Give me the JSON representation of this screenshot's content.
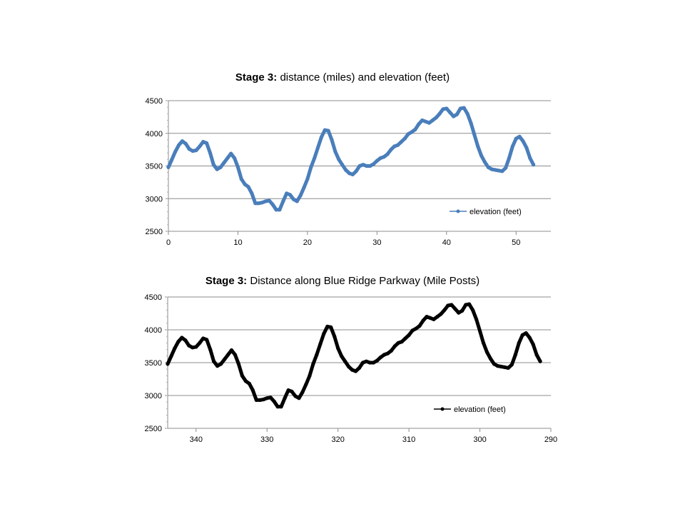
{
  "chart_data": [
    {
      "type": "line",
      "title_bold": "Stage 3:",
      "title_rest": " distance (miles) and elevation (feet)",
      "xlabel": "",
      "ylabel": "",
      "xlim": [
        0,
        55
      ],
      "ylim": [
        2500,
        4500
      ],
      "xticks": [
        0,
        10,
        20,
        30,
        40,
        50
      ],
      "yticks": [
        2500,
        3000,
        3500,
        4000,
        4500
      ],
      "grid": "horizontal",
      "legend_position": "bottom-right",
      "series": [
        {
          "name": "elevation (feet)",
          "color": "#4a7ebb",
          "x": [
            0,
            0.5,
            1,
            1.5,
            2,
            2.5,
            3,
            3.5,
            4,
            4.5,
            5,
            5.5,
            6,
            6.5,
            7,
            7.5,
            8,
            8.5,
            9,
            9.5,
            10,
            10.5,
            11,
            11.5,
            12,
            12.5,
            13,
            13.5,
            14,
            14.5,
            15,
            15.5,
            16,
            16.5,
            17,
            17.5,
            18,
            18.5,
            19,
            19.5,
            20,
            20.5,
            21,
            21.5,
            22,
            22.5,
            23,
            23.5,
            24,
            24.5,
            25,
            25.5,
            26,
            26.5,
            27,
            27.5,
            28,
            28.5,
            29,
            29.5,
            30,
            30.5,
            31,
            31.5,
            32,
            32.5,
            33,
            33.5,
            34,
            34.5,
            35,
            35.5,
            36,
            36.5,
            37,
            37.5,
            38,
            38.5,
            39,
            39.5,
            40,
            40.5,
            41,
            41.5,
            42,
            42.5,
            43,
            43.5,
            44,
            44.5,
            45,
            45.5,
            46,
            46.5,
            47,
            47.5,
            48,
            48.5,
            49,
            49.5,
            50,
            50.5,
            51,
            51.5,
            52,
            52.5
          ],
          "y": [
            3480,
            3600,
            3720,
            3820,
            3880,
            3840,
            3760,
            3730,
            3740,
            3800,
            3870,
            3850,
            3700,
            3520,
            3450,
            3480,
            3550,
            3620,
            3690,
            3620,
            3480,
            3300,
            3220,
            3180,
            3080,
            2930,
            2930,
            2940,
            2960,
            2970,
            2910,
            2830,
            2830,
            2960,
            3080,
            3060,
            2990,
            2960,
            3050,
            3170,
            3300,
            3480,
            3620,
            3780,
            3940,
            4050,
            4040,
            3900,
            3720,
            3600,
            3520,
            3440,
            3390,
            3370,
            3420,
            3500,
            3520,
            3500,
            3500,
            3530,
            3580,
            3620,
            3640,
            3680,
            3750,
            3800,
            3820,
            3870,
            3920,
            3990,
            4020,
            4060,
            4140,
            4200,
            4180,
            4160,
            4200,
            4240,
            4300,
            4370,
            4380,
            4320,
            4260,
            4290,
            4380,
            4390,
            4300,
            4160,
            3980,
            3800,
            3660,
            3560,
            3480,
            3450,
            3440,
            3430,
            3420,
            3470,
            3620,
            3800,
            3920,
            3950,
            3880,
            3780,
            3620,
            3520
          ]
        }
      ]
    },
    {
      "type": "line",
      "title_bold": "Stage 3:",
      "title_rest": " Distance along Blue Ridge Parkway (Mile Posts)",
      "xlabel": "",
      "ylabel": "",
      "xlim": [
        344,
        290
      ],
      "ylim": [
        2500,
        4500
      ],
      "xticks": [
        340,
        330,
        320,
        310,
        300,
        290
      ],
      "yticks": [
        2500,
        3000,
        3500,
        4000,
        4500
      ],
      "grid": "horizontal",
      "legend_position": "bottom-right",
      "series": [
        {
          "name": "elevation (feet)",
          "color": "#000000",
          "x": [
            344,
            343.5,
            343,
            342.5,
            342,
            341.5,
            341,
            340.5,
            340,
            339.5,
            339,
            338.5,
            338,
            337.5,
            337,
            336.5,
            336,
            335.5,
            335,
            334.5,
            334,
            333.5,
            333,
            332.5,
            332,
            331.5,
            331,
            330.5,
            330,
            329.5,
            329,
            328.5,
            328,
            327.5,
            327,
            326.5,
            326,
            325.5,
            325,
            324.5,
            324,
            323.5,
            323,
            322.5,
            322,
            321.5,
            321,
            320.5,
            320,
            319.5,
            319,
            318.5,
            318,
            317.5,
            317,
            316.5,
            316,
            315.5,
            315,
            314.5,
            314,
            313.5,
            313,
            312.5,
            312,
            311.5,
            311,
            310.5,
            310,
            309.5,
            309,
            308.5,
            308,
            307.5,
            307,
            306.5,
            306,
            305.5,
            305,
            304.5,
            304,
            303.5,
            303,
            302.5,
            302,
            301.5,
            301,
            300.5,
            300,
            299.5,
            299,
            298.5,
            298,
            297.5,
            297,
            296.5,
            296,
            295.5,
            295,
            294.5,
            294,
            293.5,
            293,
            292.5,
            292,
            291.5
          ],
          "y": [
            3480,
            3600,
            3720,
            3820,
            3880,
            3840,
            3760,
            3730,
            3740,
            3800,
            3870,
            3850,
            3700,
            3520,
            3450,
            3480,
            3550,
            3620,
            3690,
            3620,
            3480,
            3300,
            3220,
            3180,
            3080,
            2930,
            2930,
            2940,
            2960,
            2970,
            2910,
            2830,
            2830,
            2960,
            3080,
            3060,
            2990,
            2960,
            3050,
            3170,
            3300,
            3480,
            3620,
            3780,
            3940,
            4050,
            4040,
            3900,
            3720,
            3600,
            3520,
            3440,
            3390,
            3370,
            3420,
            3500,
            3520,
            3500,
            3500,
            3530,
            3580,
            3620,
            3640,
            3680,
            3750,
            3800,
            3820,
            3870,
            3920,
            3990,
            4020,
            4060,
            4140,
            4200,
            4180,
            4160,
            4200,
            4240,
            4300,
            4370,
            4380,
            4320,
            4260,
            4290,
            4380,
            4390,
            4300,
            4160,
            3980,
            3800,
            3660,
            3560,
            3480,
            3450,
            3440,
            3430,
            3420,
            3470,
            3620,
            3800,
            3920,
            3950,
            3880,
            3780,
            3620,
            3520
          ]
        }
      ]
    }
  ]
}
